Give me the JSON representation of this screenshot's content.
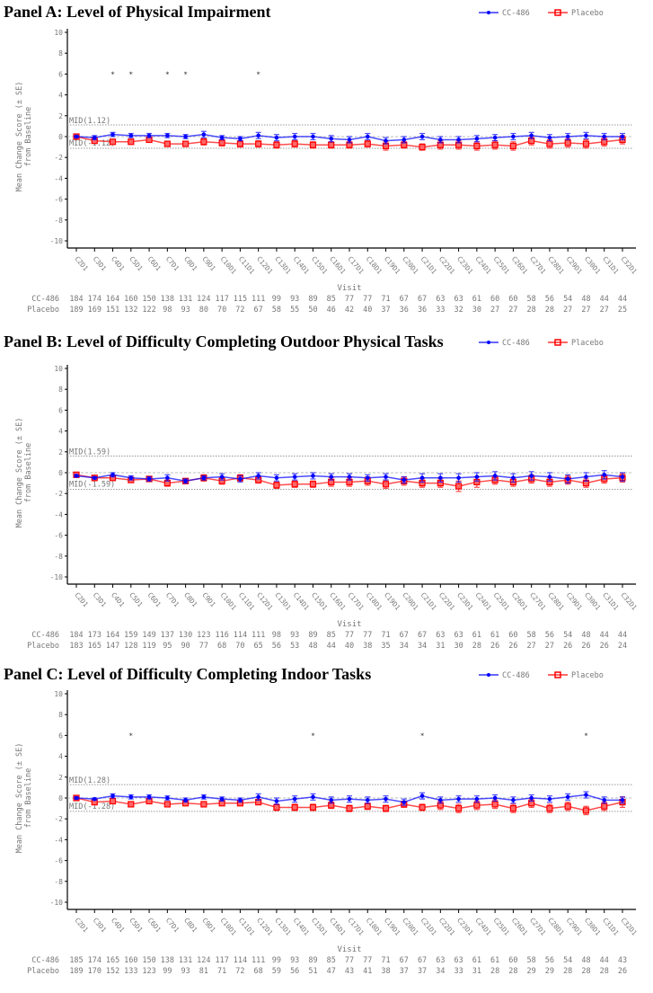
{
  "chart_data": [
    {
      "type": "line",
      "title": "Panel A: Level of Physical Impairment",
      "xlabel": "Visit",
      "ylabel": [
        "Mean Change Score (± SE)",
        "from Baseline"
      ],
      "ylim": [
        -10,
        10
      ],
      "yticks": [
        10,
        8,
        6,
        4,
        2,
        0,
        -2,
        -4,
        -6,
        -8,
        -10
      ],
      "grid": false,
      "legend": "top-right",
      "mid": {
        "value": 1.12,
        "upper_label": "MID(1.12)",
        "lower_label": "MID(-1.12)"
      },
      "categories": [
        "C2D1",
        "C3D1",
        "C4D1",
        "C5D1",
        "C6D1",
        "C7D1",
        "C8D1",
        "C9D1",
        "C10D1",
        "C11D1",
        "C12D1",
        "C13D1",
        "C14D1",
        "C15D1",
        "C16D1",
        "C17D1",
        "C18D1",
        "C19D1",
        "C20D1",
        "C21D1",
        "C22D1",
        "C23D1",
        "C24D1",
        "C25D1",
        "C26D1",
        "C27D1",
        "C28D1",
        "C29D1",
        "C30D1",
        "C31D1",
        "C32D1"
      ],
      "significance_marker": "*",
      "significant_visits": [
        "C4D1",
        "C5D1",
        "C7D1",
        "C8D1",
        "C12D1"
      ],
      "series": [
        {
          "name": "CC-486",
          "color": "#0000ff",
          "marker": "diamond",
          "values": [
            0,
            -0.1,
            0.2,
            0.1,
            0.1,
            0.1,
            0,
            0.2,
            -0.1,
            -0.2,
            0.1,
            -0.1,
            0,
            0,
            -0.2,
            -0.3,
            0,
            -0.4,
            -0.3,
            0,
            -0.3,
            -0.3,
            -0.2,
            -0.1,
            0,
            0.1,
            -0.1,
            0,
            0.1,
            0,
            0
          ],
          "se": [
            0.1,
            0.2,
            0.2,
            0.2,
            0.2,
            0.2,
            0.2,
            0.3,
            0.2,
            0.2,
            0.3,
            0.3,
            0.3,
            0.3,
            0.3,
            0.3,
            0.3,
            0.3,
            0.3,
            0.3,
            0.3,
            0.3,
            0.3,
            0.3,
            0.3,
            0.3,
            0.3,
            0.3,
            0.3,
            0.3,
            0.3
          ],
          "n": [
            184,
            174,
            164,
            160,
            150,
            138,
            131,
            124,
            117,
            115,
            111,
            99,
            93,
            89,
            85,
            77,
            77,
            71,
            67,
            67,
            63,
            63,
            61,
            60,
            60,
            58,
            56,
            54,
            48,
            44,
            44
          ]
        },
        {
          "name": "Placebo",
          "color": "#ff0000",
          "marker": "square",
          "values": [
            0,
            -0.4,
            -0.5,
            -0.5,
            -0.3,
            -0.7,
            -0.7,
            -0.5,
            -0.6,
            -0.7,
            -0.7,
            -0.8,
            -0.7,
            -0.8,
            -0.8,
            -0.8,
            -0.7,
            -0.9,
            -0.8,
            -1.0,
            -0.8,
            -0.8,
            -0.9,
            -0.8,
            -0.9,
            -0.4,
            -0.7,
            -0.6,
            -0.7,
            -0.5,
            -0.3
          ],
          "se": [
            0.1,
            0.2,
            0.2,
            0.2,
            0.2,
            0.2,
            0.2,
            0.3,
            0.3,
            0.3,
            0.3,
            0.3,
            0.3,
            0.3,
            0.3,
            0.3,
            0.3,
            0.4,
            0.3,
            0.3,
            0.4,
            0.4,
            0.4,
            0.4,
            0.4,
            0.4,
            0.4,
            0.4,
            0.4,
            0.4,
            0.4
          ],
          "n": [
            189,
            169,
            151,
            132,
            122,
            98,
            93,
            80,
            70,
            72,
            67,
            58,
            55,
            50,
            46,
            42,
            40,
            37,
            36,
            36,
            33,
            32,
            30,
            27,
            27,
            28,
            28,
            27,
            27,
            27,
            25
          ]
        }
      ]
    },
    {
      "type": "line",
      "title": "Panel B: Level of Difficulty Completing Outdoor Physical Tasks",
      "xlabel": "Visit",
      "ylabel": [
        "Mean Change Score (± SE)",
        "from Baseline"
      ],
      "ylim": [
        -10,
        10
      ],
      "yticks": [
        10,
        8,
        6,
        4,
        2,
        0,
        -2,
        -4,
        -6,
        -8,
        -10
      ],
      "grid": false,
      "legend": "top-right",
      "mid": {
        "value": 1.59,
        "upper_label": "MID(1.59)",
        "lower_label": "MID(-1.59)"
      },
      "categories": [
        "C2D1",
        "C3D1",
        "C4D1",
        "C5D1",
        "C6D1",
        "C7D1",
        "C8D1",
        "C9D1",
        "C10D1",
        "C11D1",
        "C12D1",
        "C13D1",
        "C14D1",
        "C15D1",
        "C16D1",
        "C17D1",
        "C18D1",
        "C19D1",
        "C20D1",
        "C21D1",
        "C22D1",
        "C23D1",
        "C24D1",
        "C25D1",
        "C26D1",
        "C27D1",
        "C28D1",
        "C29D1",
        "C30D1",
        "C31D1",
        "C32D1"
      ],
      "significance_marker": "*",
      "significant_visits": [],
      "series": [
        {
          "name": "CC-486",
          "color": "#0000ff",
          "marker": "diamond",
          "values": [
            -0.3,
            -0.5,
            -0.2,
            -0.5,
            -0.6,
            -0.5,
            -0.8,
            -0.5,
            -0.4,
            -0.6,
            -0.3,
            -0.5,
            -0.4,
            -0.3,
            -0.4,
            -0.4,
            -0.5,
            -0.4,
            -0.7,
            -0.5,
            -0.5,
            -0.5,
            -0.4,
            -0.3,
            -0.5,
            -0.3,
            -0.4,
            -0.6,
            -0.4,
            -0.2,
            -0.4
          ],
          "se": [
            0.1,
            0.1,
            0.2,
            0.2,
            0.2,
            0.3,
            0.2,
            0.2,
            0.3,
            0.3,
            0.3,
            0.3,
            0.3,
            0.3,
            0.3,
            0.3,
            0.3,
            0.3,
            0.3,
            0.4,
            0.4,
            0.4,
            0.4,
            0.4,
            0.4,
            0.4,
            0.4,
            0.4,
            0.4,
            0.4,
            0.4
          ],
          "n": [
            184,
            173,
            164,
            159,
            149,
            137,
            130,
            123,
            116,
            114,
            111,
            98,
            93,
            89,
            85,
            77,
            77,
            71,
            67,
            67,
            63,
            63,
            61,
            61,
            60,
            58,
            56,
            54,
            48,
            44,
            44
          ]
        },
        {
          "name": "Placebo",
          "color": "#ff0000",
          "marker": "square",
          "values": [
            -0.2,
            -0.5,
            -0.5,
            -0.7,
            -0.6,
            -1.0,
            -0.8,
            -0.5,
            -0.8,
            -0.5,
            -0.7,
            -1.2,
            -1.1,
            -1.1,
            -0.9,
            -0.9,
            -0.8,
            -1.1,
            -0.8,
            -1.0,
            -1.0,
            -1.3,
            -0.9,
            -0.7,
            -0.9,
            -0.6,
            -0.9,
            -0.7,
            -1.0,
            -0.6,
            -0.5
          ],
          "se": [
            0.2,
            0.2,
            0.2,
            0.2,
            0.2,
            0.3,
            0.2,
            0.3,
            0.3,
            0.3,
            0.3,
            0.3,
            0.3,
            0.3,
            0.4,
            0.4,
            0.4,
            0.4,
            0.4,
            0.4,
            0.4,
            0.5,
            0.5,
            0.4,
            0.4,
            0.4,
            0.4,
            0.4,
            0.4,
            0.4,
            0.4
          ],
          "n": [
            183,
            165,
            147,
            128,
            119,
            95,
            90,
            77,
            68,
            70,
            65,
            56,
            53,
            48,
            44,
            40,
            38,
            35,
            34,
            34,
            31,
            30,
            28,
            26,
            26,
            27,
            27,
            26,
            26,
            26,
            24
          ]
        }
      ]
    },
    {
      "type": "line",
      "title": "Panel C: Level of Difficulty Completing Indoor Tasks",
      "xlabel": "Visit",
      "ylabel": [
        "Mean Change Score (± SE)",
        "from Baseline"
      ],
      "ylim": [
        -10,
        10
      ],
      "yticks": [
        10,
        8,
        6,
        4,
        2,
        0,
        -2,
        -4,
        -6,
        -8,
        -10
      ],
      "grid": false,
      "legend": "top-right",
      "mid": {
        "value": 1.28,
        "upper_label": "MID(1.28)",
        "lower_label": "MID(-1.28)"
      },
      "categories": [
        "C2D1",
        "C3D1",
        "C4D1",
        "C5D1",
        "C6D1",
        "C7D1",
        "C8D1",
        "C9D1",
        "C10D1",
        "C11D1",
        "C12D1",
        "C13D1",
        "C14D1",
        "C15D1",
        "C16D1",
        "C17D1",
        "C18D1",
        "C19D1",
        "C20D1",
        "C21D1",
        "C22D1",
        "C23D1",
        "C24D1",
        "C25D1",
        "C26D1",
        "C27D1",
        "C28D1",
        "C29D1",
        "C30D1",
        "C31D1",
        "C32D1"
      ],
      "significance_marker": "*",
      "significant_visits": [
        "C5D1",
        "C15D1",
        "C21D1",
        "C30D1"
      ],
      "series": [
        {
          "name": "CC-486",
          "color": "#0000ff",
          "marker": "diamond",
          "values": [
            0,
            -0.1,
            0.2,
            0.1,
            0.1,
            0,
            -0.2,
            0.1,
            -0.1,
            -0.2,
            0.1,
            -0.3,
            -0.1,
            0.1,
            -0.2,
            -0.1,
            -0.2,
            -0.1,
            -0.4,
            0.2,
            -0.2,
            -0.1,
            -0.1,
            0,
            -0.2,
            0,
            -0.1,
            0.1,
            0.3,
            -0.2,
            -0.2
          ],
          "se": [
            0.1,
            0.1,
            0.2,
            0.2,
            0.2,
            0.2,
            0.2,
            0.2,
            0.2,
            0.2,
            0.3,
            0.3,
            0.3,
            0.3,
            0.3,
            0.3,
            0.3,
            0.3,
            0.3,
            0.3,
            0.3,
            0.3,
            0.3,
            0.3,
            0.3,
            0.3,
            0.3,
            0.3,
            0.3,
            0.3,
            0.3
          ],
          "n": [
            185,
            174,
            165,
            160,
            150,
            138,
            131,
            124,
            117,
            114,
            111,
            99,
            93,
            89,
            85,
            77,
            77,
            71,
            67,
            67,
            63,
            63,
            61,
            61,
            60,
            58,
            56,
            54,
            48,
            44,
            43
          ]
        },
        {
          "name": "Placebo",
          "color": "#ff0000",
          "marker": "square",
          "values": [
            0,
            -0.4,
            -0.3,
            -0.6,
            -0.3,
            -0.6,
            -0.5,
            -0.6,
            -0.5,
            -0.5,
            -0.4,
            -0.9,
            -0.9,
            -0.9,
            -0.7,
            -1.0,
            -0.8,
            -1.0,
            -0.6,
            -0.9,
            -0.7,
            -1.0,
            -0.7,
            -0.6,
            -1.0,
            -0.5,
            -1.0,
            -0.8,
            -1.2,
            -0.8,
            -0.4
          ],
          "se": [
            0.1,
            0.2,
            0.2,
            0.2,
            0.2,
            0.2,
            0.2,
            0.2,
            0.2,
            0.2,
            0.2,
            0.3,
            0.3,
            0.3,
            0.3,
            0.3,
            0.3,
            0.3,
            0.3,
            0.3,
            0.4,
            0.4,
            0.4,
            0.4,
            0.4,
            0.4,
            0.4,
            0.4,
            0.4,
            0.4,
            0.5
          ],
          "n": [
            189,
            170,
            152,
            133,
            123,
            99,
            93,
            81,
            71,
            72,
            68,
            59,
            56,
            51,
            47,
            43,
            41,
            38,
            37,
            37,
            34,
            33,
            31,
            28,
            28,
            29,
            29,
            28,
            28,
            28,
            26
          ]
        }
      ]
    }
  ]
}
